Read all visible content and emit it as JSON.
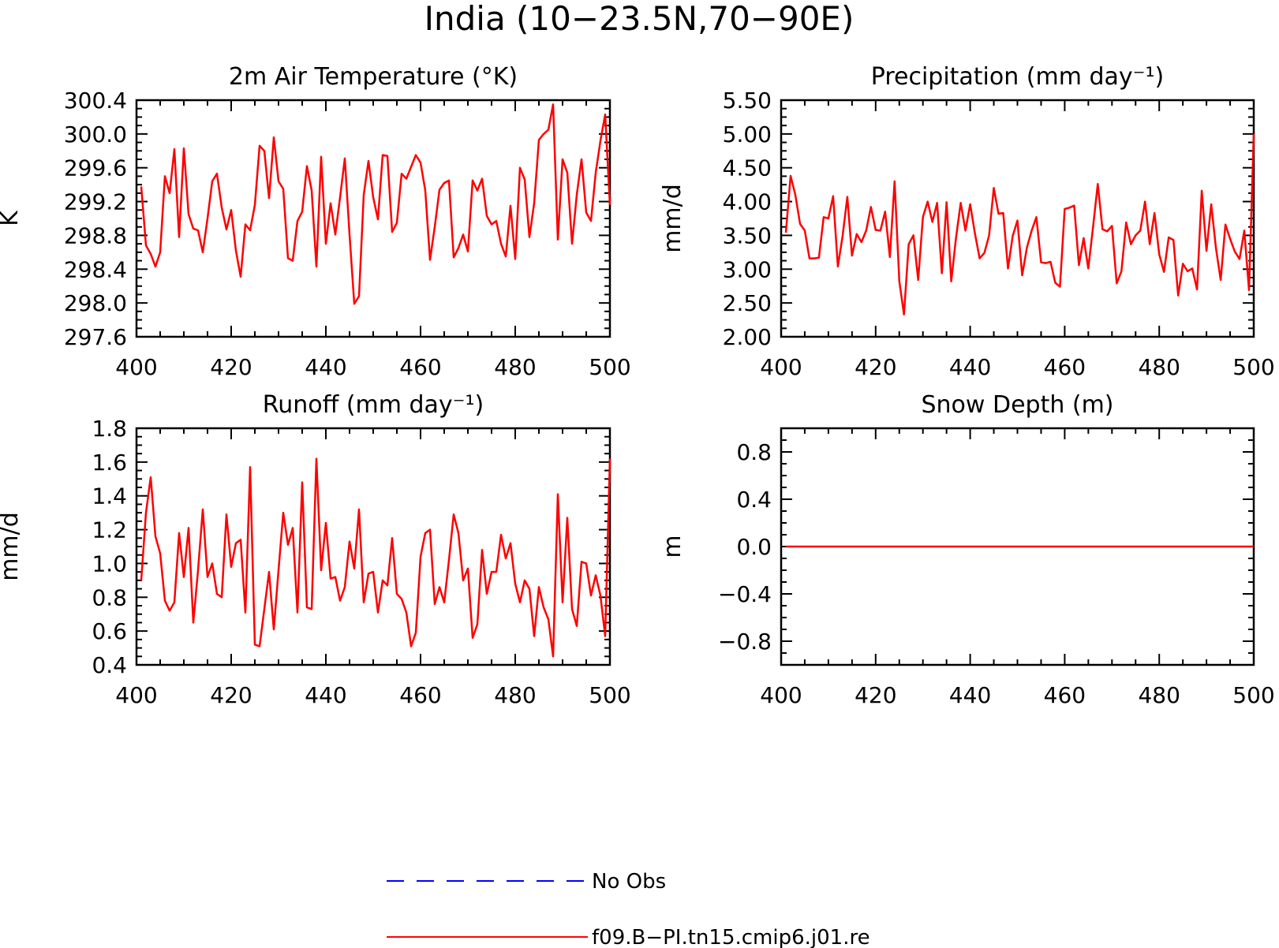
{
  "figure_title": "India (10−23.5N,70−90E)",
  "legend": [
    {
      "label": "No Obs",
      "color": "#0000ff",
      "style": "dashed"
    },
    {
      "label": "f09.B−PI.tn15.cmip6.j01.re",
      "color": "#ff0000",
      "style": "solid"
    }
  ],
  "chart_data": [
    {
      "type": "line",
      "title": "2m Air Temperature (°K)",
      "ylabel": "K",
      "xlim": [
        400,
        500
      ],
      "ylim": [
        297.6,
        300.4
      ],
      "xticks": [
        400,
        420,
        440,
        460,
        480,
        500
      ],
      "yticks": [
        297.6,
        298.0,
        298.4,
        298.8,
        299.2,
        299.6,
        300.0,
        300.4
      ],
      "ytick_labels": [
        "297.6",
        "298.0",
        "298.4",
        "298.8",
        "299.2",
        "299.6",
        "300.0",
        "300.4"
      ],
      "x_start": 401,
      "series": [
        {
          "name": "f09.B−PI.tn15.cmip6.j01.re",
          "color": "#ff0000",
          "values": [
            299.38,
            298.68,
            298.58,
            298.43,
            298.6,
            299.5,
            299.3,
            299.82,
            298.78,
            299.83,
            299.05,
            298.88,
            298.86,
            298.6,
            299.0,
            299.44,
            299.53,
            299.13,
            298.87,
            299.1,
            298.62,
            298.31,
            298.93,
            298.86,
            299.16,
            299.86,
            299.8,
            299.24,
            299.96,
            299.44,
            299.35,
            298.53,
            298.5,
            298.97,
            299.08,
            299.62,
            299.33,
            298.43,
            299.73,
            298.7,
            299.18,
            298.81,
            299.25,
            299.71,
            298.81,
            297.99,
            298.08,
            299.28,
            299.68,
            299.25,
            298.99,
            299.75,
            299.74,
            298.84,
            298.95,
            299.53,
            299.47,
            299.61,
            299.75,
            299.66,
            299.33,
            298.51,
            298.9,
            299.34,
            299.42,
            299.45,
            298.54,
            298.65,
            298.81,
            298.61,
            299.45,
            299.33,
            299.47,
            299.03,
            298.93,
            298.97,
            298.7,
            298.55,
            299.15,
            298.52,
            299.6,
            299.46,
            298.78,
            299.18,
            299.93,
            300.0,
            300.05,
            300.35,
            298.75,
            299.7,
            299.54,
            298.7,
            299.28,
            299.7,
            299.07,
            298.97,
            299.54,
            299.92,
            300.23,
            299.16
          ]
        }
      ]
    },
    {
      "type": "line",
      "title": "Precipitation (mm day⁻¹)",
      "ylabel": "mm/d",
      "xlim": [
        400,
        500
      ],
      "ylim": [
        2.0,
        5.5
      ],
      "xticks": [
        400,
        420,
        440,
        460,
        480,
        500
      ],
      "yticks": [
        2.0,
        2.5,
        3.0,
        3.5,
        4.0,
        4.5,
        5.0,
        5.5
      ],
      "ytick_labels": [
        "2.00",
        "2.50",
        "3.00",
        "3.50",
        "4.00",
        "4.50",
        "5.00",
        "5.50"
      ],
      "x_start": 401,
      "series": [
        {
          "name": "f09.B−PI.tn15.cmip6.j01.re",
          "color": "#ff0000",
          "values": [
            3.54,
            4.38,
            4.1,
            3.67,
            3.57,
            3.16,
            3.16,
            3.17,
            3.77,
            3.75,
            4.08,
            3.04,
            3.49,
            4.07,
            3.2,
            3.52,
            3.4,
            3.57,
            3.92,
            3.58,
            3.57,
            3.85,
            3.18,
            4.3,
            2.82,
            2.33,
            3.37,
            3.5,
            2.84,
            3.77,
            4.0,
            3.7,
            3.98,
            2.94,
            3.99,
            2.82,
            3.46,
            3.98,
            3.57,
            3.96,
            3.53,
            3.16,
            3.24,
            3.5,
            4.2,
            3.82,
            3.83,
            3.01,
            3.49,
            3.72,
            2.91,
            3.32,
            3.57,
            3.77,
            3.1,
            3.09,
            3.11,
            2.8,
            2.74,
            3.89,
            3.91,
            3.94,
            3.06,
            3.46,
            3.01,
            3.62,
            4.26,
            3.59,
            3.56,
            3.64,
            2.79,
            2.97,
            3.69,
            3.37,
            3.5,
            3.57,
            4.0,
            3.37,
            3.83,
            3.22,
            2.96,
            3.47,
            3.43,
            2.61,
            3.08,
            2.97,
            3.01,
            2.7,
            4.16,
            3.27,
            3.96,
            3.31,
            2.84,
            3.66,
            3.45,
            3.26,
            3.15,
            3.57,
            2.69,
            5.0
          ]
        }
      ]
    },
    {
      "type": "line",
      "title": "Runoff (mm day⁻¹)",
      "ylabel": "mm/d",
      "xlim": [
        400,
        500
      ],
      "ylim": [
        0.4,
        1.8
      ],
      "xticks": [
        400,
        420,
        440,
        460,
        480,
        500
      ],
      "yticks": [
        0.4,
        0.6,
        0.8,
        1.0,
        1.2,
        1.4,
        1.6,
        1.8
      ],
      "ytick_labels": [
        "0.4",
        "0.6",
        "0.8",
        "1.0",
        "1.2",
        "1.4",
        "1.6",
        "1.8"
      ],
      "x_start": 401,
      "series": [
        {
          "name": "f09.B−PI.tn15.cmip6.j01.re",
          "color": "#ff0000",
          "values": [
            0.9,
            1.3,
            1.51,
            1.16,
            1.06,
            0.78,
            0.72,
            0.77,
            1.18,
            0.92,
            1.21,
            0.65,
            0.96,
            1.32,
            0.92,
            1.0,
            0.82,
            0.8,
            1.29,
            0.98,
            1.12,
            1.14,
            0.71,
            1.57,
            0.52,
            0.51,
            0.73,
            0.95,
            0.61,
            0.96,
            1.3,
            1.11,
            1.21,
            0.71,
            1.48,
            0.74,
            0.73,
            1.62,
            0.96,
            1.24,
            0.91,
            0.92,
            0.78,
            0.86,
            1.13,
            0.97,
            1.32,
            0.77,
            0.94,
            0.95,
            0.71,
            0.9,
            0.87,
            1.15,
            0.82,
            0.79,
            0.71,
            0.51,
            0.59,
            1.04,
            1.18,
            1.2,
            0.76,
            0.86,
            0.77,
            1.02,
            1.29,
            1.18,
            0.9,
            0.97,
            0.56,
            0.64,
            1.08,
            0.82,
            0.95,
            0.95,
            1.17,
            1.03,
            1.12,
            0.88,
            0.77,
            0.9,
            0.85,
            0.57,
            0.86,
            0.74,
            0.67,
            0.45,
            1.41,
            0.77,
            1.27,
            0.73,
            0.63,
            1.01,
            1.0,
            0.81,
            0.93,
            0.81,
            0.57,
            1.62
          ]
        }
      ]
    },
    {
      "type": "line",
      "title": "Snow Depth (m)",
      "ylabel": "m",
      "xlim": [
        400,
        500
      ],
      "ylim": [
        -1.0,
        1.0
      ],
      "xticks": [
        400,
        420,
        440,
        460,
        480,
        500
      ],
      "yticks": [
        -0.8,
        -0.4,
        0.0,
        0.4,
        0.8
      ],
      "ytick_labels": [
        "−0.8",
        "−0.4",
        "0.0",
        "0.4",
        "0.8"
      ],
      "x_start": 401,
      "series": [
        {
          "name": "f09.B−PI.tn15.cmip6.j01.re",
          "color": "#ff0000",
          "values": [
            0,
            0,
            0,
            0,
            0,
            0,
            0,
            0,
            0,
            0,
            0,
            0,
            0,
            0,
            0,
            0,
            0,
            0,
            0,
            0,
            0,
            0,
            0,
            0,
            0,
            0,
            0,
            0,
            0,
            0,
            0,
            0,
            0,
            0,
            0,
            0,
            0,
            0,
            0,
            0,
            0,
            0,
            0,
            0,
            0,
            0,
            0,
            0,
            0,
            0,
            0,
            0,
            0,
            0,
            0,
            0,
            0,
            0,
            0,
            0,
            0,
            0,
            0,
            0,
            0,
            0,
            0,
            0,
            0,
            0,
            0,
            0,
            0,
            0,
            0,
            0,
            0,
            0,
            0,
            0,
            0,
            0,
            0,
            0,
            0,
            0,
            0,
            0,
            0,
            0,
            0,
            0,
            0,
            0,
            0,
            0,
            0,
            0,
            0,
            0
          ]
        }
      ]
    }
  ]
}
